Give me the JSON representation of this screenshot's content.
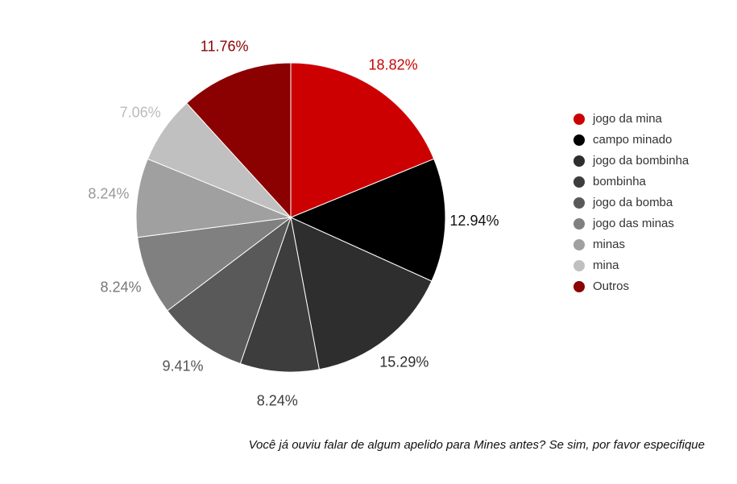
{
  "chart_data": {
    "type": "pie",
    "title": "",
    "slices": [
      {
        "label": "jogo da mina",
        "value": 18.82,
        "value_label": "18.82%",
        "color": "#cc0000",
        "label_color": "#cc0000"
      },
      {
        "label": "campo minado",
        "value": 12.94,
        "value_label": "12.94%",
        "color": "#000000",
        "label_color": "#111111"
      },
      {
        "label": "jogo da bombinha",
        "value": 15.29,
        "value_label": "15.29%",
        "color": "#2e2e2e",
        "label_color": "#2e2e2e"
      },
      {
        "label": "bombinha",
        "value": 8.24,
        "value_label": "8.24%",
        "color": "#3d3d3d",
        "label_color": "#3d3d3d"
      },
      {
        "label": "jogo da bomba",
        "value": 9.41,
        "value_label": "9.41%",
        "color": "#595959",
        "label_color": "#555555"
      },
      {
        "label": "jogo das minas",
        "value": 8.24,
        "value_label": "8.24%",
        "color": "#808080",
        "label_color": "#777777"
      },
      {
        "label": "minas",
        "value": 8.24,
        "value_label": "8.24%",
        "color": "#a0a0a0",
        "label_color": "#999999"
      },
      {
        "label": "mina",
        "value": 7.06,
        "value_label": "7.06%",
        "color": "#c0c0c0",
        "label_color": "#bbbbbb"
      },
      {
        "label": "Outros",
        "value": 11.76,
        "value_label": "11.76%",
        "color": "#8b0000",
        "label_color": "#8b0000"
      }
    ],
    "legend_position": "right"
  },
  "legend": {
    "items": [
      {
        "label": "jogo da mina",
        "color": "#cc0000"
      },
      {
        "label": "campo minado",
        "color": "#000000"
      },
      {
        "label": "jogo da bombinha",
        "color": "#2e2e2e"
      },
      {
        "label": "bombinha",
        "color": "#3d3d3d"
      },
      {
        "label": "jogo da bomba",
        "color": "#595959"
      },
      {
        "label": "jogo das minas",
        "color": "#808080"
      },
      {
        "label": "minas",
        "color": "#a0a0a0"
      },
      {
        "label": "mina",
        "color": "#c0c0c0"
      },
      {
        "label": "Outros",
        "color": "#8b0000"
      }
    ]
  },
  "caption": "Você já ouviu falar de algum apelido para Mines antes?  Se sim, por favor especifique"
}
